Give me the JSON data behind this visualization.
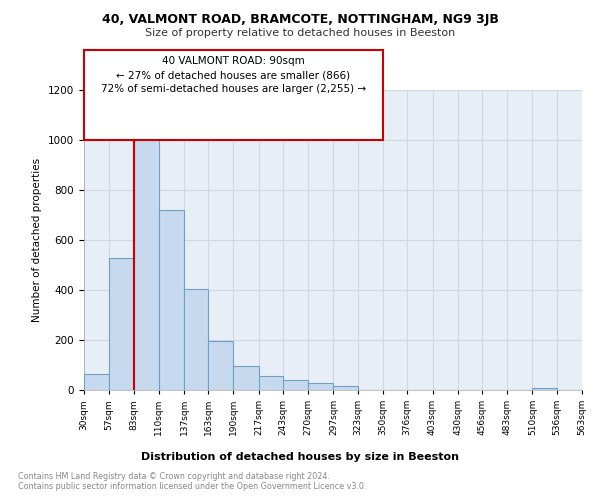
{
  "title": "40, VALMONT ROAD, BRAMCOTE, NOTTINGHAM, NG9 3JB",
  "subtitle": "Size of property relative to detached houses in Beeston",
  "xlabel": "Distribution of detached houses by size in Beeston",
  "ylabel": "Number of detached properties",
  "footer_line1": "Contains HM Land Registry data © Crown copyright and database right 2024.",
  "footer_line2": "Contains public sector information licensed under the Open Government Licence v3.0.",
  "annotation_line1": "40 VALMONT ROAD: 90sqm",
  "annotation_line2": "← 27% of detached houses are smaller (866)",
  "annotation_line3": "72% of semi-detached houses are larger (2,255) →",
  "property_line_x": 83,
  "bar_color": "#c6d9ee",
  "bar_edge_color": "#6fa0c8",
  "property_line_color": "#cc0000",
  "annotation_box_color": "#cc0000",
  "grid_color": "#d0d8e8",
  "background_color": "#e8eef5",
  "ylim": [
    0,
    1200
  ],
  "yticks": [
    0,
    200,
    400,
    600,
    800,
    1000,
    1200
  ],
  "bins": [
    30,
    57,
    83,
    110,
    137,
    163,
    190,
    217,
    243,
    270,
    297,
    323,
    350,
    376,
    403,
    430,
    456,
    483,
    510,
    536,
    563
  ],
  "counts": [
    65,
    530,
    1000,
    720,
    405,
    195,
    95,
    55,
    40,
    30,
    15,
    0,
    0,
    0,
    0,
    0,
    0,
    0,
    10,
    0,
    0
  ]
}
